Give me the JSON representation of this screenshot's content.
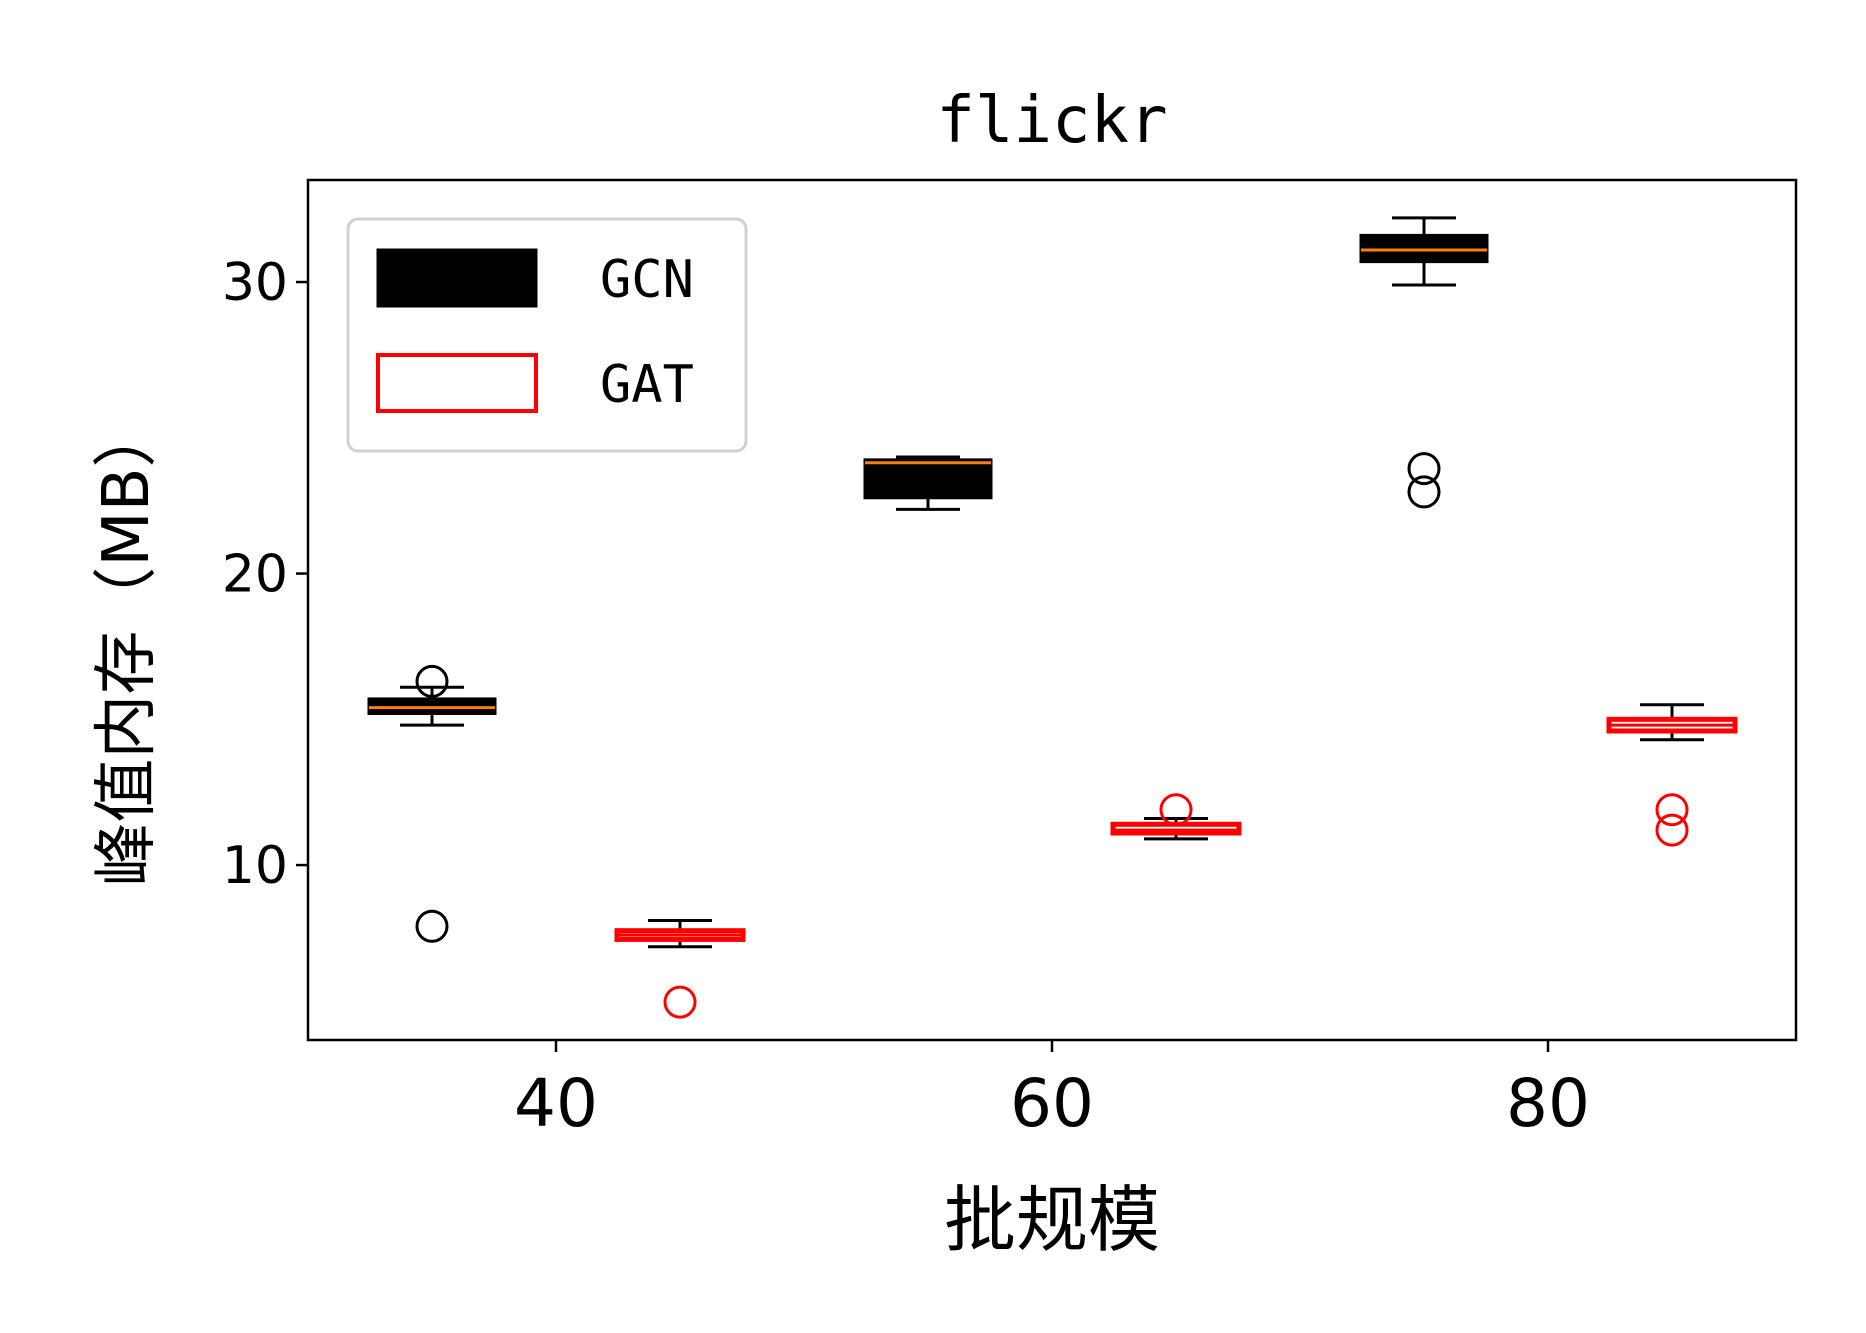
{
  "chart_data": {
    "type": "box",
    "title": "flickr",
    "xlabel": "批规模",
    "ylabel": "峰值内存（MB）",
    "x_ticks": [
      40,
      60,
      80
    ],
    "y_ticks": [
      10,
      20,
      30
    ],
    "xlim": [
      30,
      90
    ],
    "ylim": [
      4.0,
      33.5
    ],
    "grid": false,
    "legend_position": "top-left",
    "series": [
      {
        "name": "GCN",
        "style": "filled",
        "fill_color": "#000000",
        "median_color": "#ff7f0e",
        "boxes": [
          {
            "x": 35,
            "whisker_low": 14.8,
            "q1": 15.2,
            "median": 15.4,
            "q3": 15.7,
            "whisker_high": 16.1,
            "outliers": [
              16.3,
              7.9
            ]
          },
          {
            "x": 55,
            "whisker_low": 22.2,
            "q1": 22.6,
            "median": 23.8,
            "q3": 23.9,
            "whisker_high": 24.0,
            "outliers": []
          },
          {
            "x": 75,
            "whisker_low": 29.9,
            "q1": 30.7,
            "median": 31.1,
            "q3": 31.6,
            "whisker_high": 32.2,
            "outliers": [
              23.6,
              22.8
            ]
          }
        ]
      },
      {
        "name": "GAT",
        "style": "outline",
        "edge_color": "#ff0000",
        "median_color": "#ff0000",
        "boxes": [
          {
            "x": 45,
            "whisker_low": 7.2,
            "q1": 7.45,
            "median": 7.6,
            "q3": 7.75,
            "whisker_high": 8.1,
            "outliers": [
              5.3
            ]
          },
          {
            "x": 65,
            "whisker_low": 10.9,
            "q1": 11.1,
            "median": 11.2,
            "q3": 11.4,
            "whisker_high": 11.6,
            "outliers": [
              11.9
            ]
          },
          {
            "x": 85,
            "whisker_low": 14.3,
            "q1": 14.6,
            "median": 14.8,
            "q3": 15.0,
            "whisker_high": 15.5,
            "outliers": [
              11.9,
              11.2
            ]
          }
        ]
      }
    ]
  }
}
